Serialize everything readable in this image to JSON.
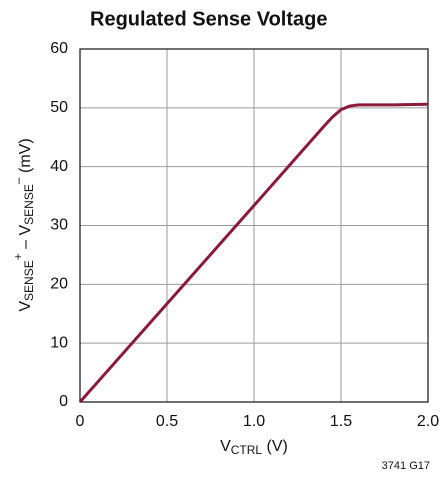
{
  "chart_data": {
    "type": "line",
    "title": "Regulated Sense Voltage",
    "xlabel": [
      "V",
      "CTRL",
      " (V)"
    ],
    "ylabel": [
      "V",
      "SENSE",
      "+",
      " – V",
      "SENSE",
      "–",
      " (mV)"
    ],
    "note": "3741 G17",
    "x": [
      0,
      0.5,
      1.0,
      1.4,
      1.45,
      1.5,
      1.55,
      1.6,
      1.8,
      2.0
    ],
    "series": [
      {
        "name": "VSENSE",
        "color": "#8b1a3a",
        "values": [
          0,
          16.7,
          33.4,
          46.8,
          48.4,
          49.7,
          50.3,
          50.5,
          50.5,
          50.6
        ]
      }
    ],
    "xlim": [
      0,
      2
    ],
    "xticks": [
      0,
      0.5,
      {
        "value": 1,
        "label": "1.0"
      },
      1.5,
      {
        "value": 2,
        "label": "2.0"
      }
    ],
    "ylim": [
      0,
      60
    ],
    "yticks": [
      0,
      10,
      20,
      30,
      40,
      50,
      60
    ],
    "grid": true
  }
}
